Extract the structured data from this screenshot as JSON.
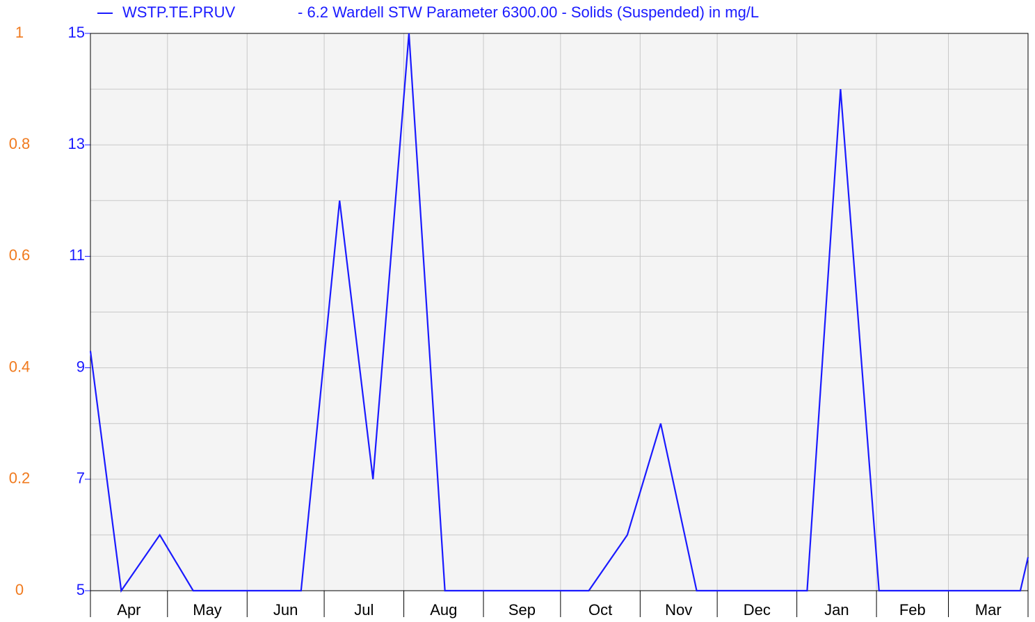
{
  "chart_data": {
    "type": "line",
    "title": "- 6.2 Wardell STW Parameter 6300.00 - Solids (Suspended) in mg/L",
    "categories": [
      "Apr",
      "May",
      "Jun",
      "Jul",
      "Aug",
      "Sep",
      "Oct",
      "Nov",
      "Dec",
      "Jan",
      "Feb",
      "Mar"
    ],
    "xlim": [
      0,
      365
    ],
    "xticks": [
      0,
      30,
      61,
      91,
      122,
      153,
      183,
      214,
      244,
      275,
      306,
      334,
      365
    ],
    "series": [
      {
        "name": "WSTP.TE.PRUV",
        "color": "#1a1aff",
        "x": [
          0,
          12,
          27,
          40,
          82,
          97,
          110,
          124,
          138,
          194,
          209,
          222,
          236,
          279,
          292,
          307,
          362,
          365
        ],
        "values": [
          9.3,
          5,
          6,
          5,
          5,
          12,
          7,
          15,
          5,
          5,
          6,
          8,
          5,
          5,
          14,
          5,
          5,
          5.6
        ]
      }
    ],
    "ylim": [
      5,
      15
    ],
    "yticks": [
      5,
      7,
      9,
      11,
      13,
      15
    ],
    "minor_yticks": [
      6,
      8,
      10,
      12,
      14
    ],
    "y2lim": [
      0,
      1
    ],
    "y2ticks": [
      0,
      0.2,
      0.4,
      0.6,
      0.8,
      1
    ],
    "y2color": "#f07a1e",
    "grid": true
  }
}
